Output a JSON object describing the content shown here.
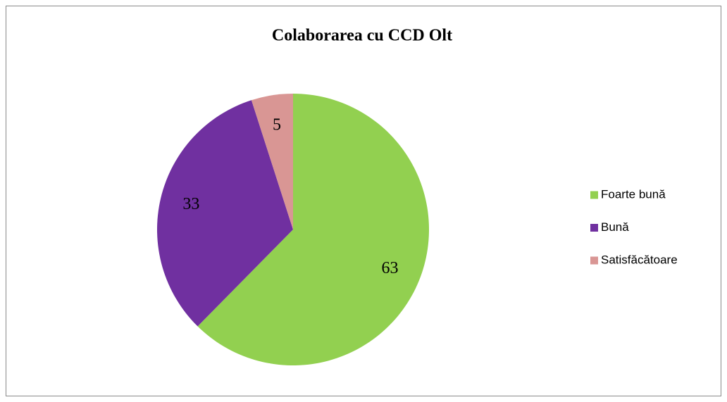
{
  "chart_data": {
    "type": "pie",
    "title": "Colaborarea cu CCD Olt",
    "categories": [
      "Foarte bună",
      "Bună",
      "Satisfăcătoare"
    ],
    "values": [
      63,
      33,
      5
    ],
    "colors": [
      "#92d050",
      "#7030a0",
      "#d99694"
    ],
    "legend": "right"
  }
}
